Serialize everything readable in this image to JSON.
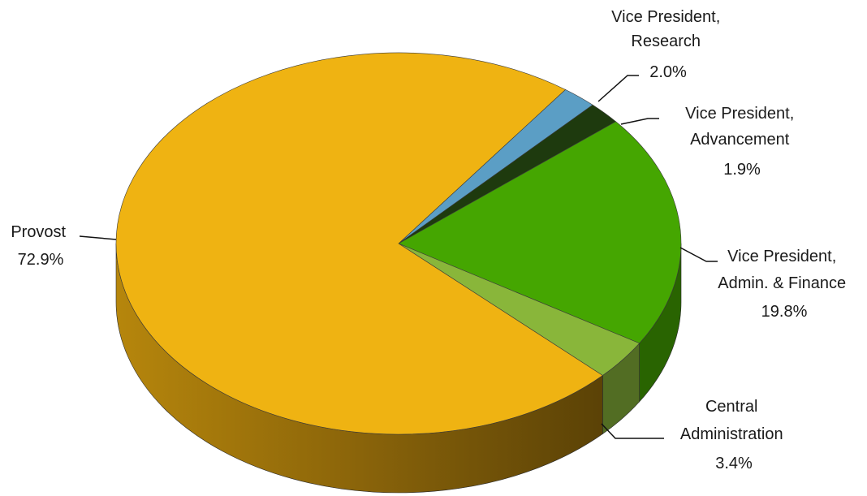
{
  "chart_data": {
    "type": "pie",
    "title": "",
    "style": "3d",
    "slices": [
      {
        "label_lines": [
          "Vice President,",
          "Research"
        ],
        "pct_text": "2.0%",
        "value": 2.0,
        "color": "#5b9ec5"
      },
      {
        "label_lines": [
          "Vice President,",
          "Advancement"
        ],
        "pct_text": "1.9%",
        "value": 1.9,
        "color": "#1e3a0e"
      },
      {
        "label_lines": [
          "Vice President,",
          "Admin. & Finance"
        ],
        "pct_text": "19.8%",
        "value": 19.8,
        "color": "#45a601"
      },
      {
        "label_lines": [
          "Central",
          "Administration"
        ],
        "pct_text": "3.4%",
        "value": 3.4,
        "color": "#89b63a"
      },
      {
        "label_lines": [
          "Provost"
        ],
        "pct_text": "72.9%",
        "value": 72.9,
        "color": "#efb312"
      }
    ]
  }
}
